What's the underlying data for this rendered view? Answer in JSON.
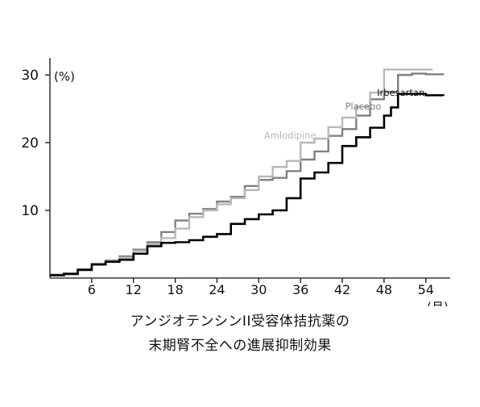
{
  "chart_data": {
    "type": "line",
    "title": "",
    "xlabel": "",
    "ylabel": "",
    "y_unit_label": "(%)",
    "x_unit_label": "(月)",
    "xlim": [
      0,
      57.5
    ],
    "ylim": [
      0,
      32.5
    ],
    "x_ticks": [
      6,
      12,
      18,
      24,
      30,
      36,
      42,
      48,
      54
    ],
    "y_ticks": [
      10,
      20,
      30
    ],
    "x_tick_labels": [
      "6",
      "12",
      "18",
      "24",
      "30",
      "36",
      "42",
      "48",
      "54"
    ],
    "y_tick_labels": [
      "10",
      "20",
      "30"
    ],
    "grid": false,
    "legend": "inline labels near line ends",
    "series": [
      {
        "name": "Placebo",
        "color": "#808080",
        "label_position": [
          45.0,
          24.9
        ],
        "x": [
          0,
          2,
          4,
          6,
          8,
          10,
          12,
          14,
          16,
          18,
          20,
          22,
          24,
          26,
          28,
          30,
          32,
          34,
          36,
          38,
          40,
          42,
          44,
          46,
          48,
          50,
          52,
          54,
          56.5
        ],
        "y": [
          0.5,
          0.7,
          1.3,
          2.1,
          2.6,
          3.2,
          4.2,
          5.3,
          6.8,
          8.5,
          9.5,
          10.2,
          11.3,
          12.0,
          13.6,
          14.5,
          14.8,
          15.8,
          17.5,
          18.7,
          21.0,
          22.0,
          24.0,
          26.4,
          27.5,
          30.0,
          30.2,
          30.1,
          30.2
        ]
      },
      {
        "name": "Amlodipine",
        "color": "#b8b8b8",
        "label_position": [
          34.5,
          20.6
        ],
        "x": [
          0,
          2,
          4,
          6,
          8,
          10,
          12,
          14,
          16,
          18,
          20,
          22,
          24,
          26,
          28,
          30,
          32,
          34,
          36,
          38,
          40,
          42,
          44,
          46,
          48,
          50,
          52,
          54,
          55
        ],
        "y": [
          0.4,
          0.6,
          1.2,
          2.0,
          2.5,
          3.0,
          4.0,
          5.0,
          5.9,
          7.3,
          9.0,
          10.0,
          10.9,
          11.8,
          13.0,
          15.0,
          16.4,
          17.3,
          20.0,
          20.6,
          22.3,
          23.7,
          25.3,
          27.4,
          30.8,
          30.8,
          30.8,
          30.8,
          30.8
        ]
      },
      {
        "name": "Irbesartan",
        "color": "#000000",
        "label_position": [
          50.4,
          26.9
        ],
        "x": [
          0,
          2,
          4,
          6,
          8,
          10,
          12,
          14,
          16,
          18,
          20,
          22,
          24,
          26,
          28,
          30,
          32,
          34,
          36,
          38,
          40,
          42,
          44,
          46,
          48,
          49,
          50,
          52,
          54,
          56.5
        ],
        "y": [
          0.4,
          0.6,
          1.2,
          2.0,
          2.4,
          2.7,
          3.6,
          4.7,
          5.2,
          5.3,
          5.6,
          6.1,
          6.5,
          8.0,
          8.7,
          9.4,
          10.0,
          11.8,
          14.7,
          15.6,
          17.0,
          19.5,
          20.8,
          22.2,
          24.0,
          25.2,
          27.2,
          27.2,
          27.0,
          26.9
        ]
      }
    ]
  },
  "caption": {
    "line1": "アンジオテンシンII受容体拮抗薬の",
    "line2": "末期腎不全への進展抑制効果"
  }
}
